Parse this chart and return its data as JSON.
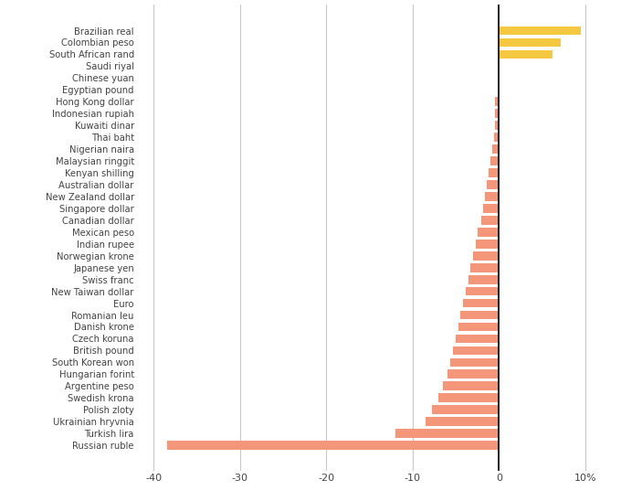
{
  "currencies": [
    "Brazilian real",
    "Colombian peso",
    "South African rand",
    "Saudi riyal",
    "Chinese yuan",
    "Egyptian pound",
    "Hong Kong dollar",
    "Indonesian rupiah",
    "Kuwaiti dinar",
    "Thai baht",
    "Nigerian naira",
    "Malaysian ringgit",
    "Kenyan shilling",
    "Australian dollar",
    "New Zealand dollar",
    "Singapore dollar",
    "Canadian dollar",
    "Mexican peso",
    "Indian rupee",
    "Norwegian krone",
    "Japanese yen",
    "Swiss franc",
    "New Taiwan dollar",
    "Euro",
    "Romanian leu",
    "Danish krone",
    "Czech koruna",
    "British pound",
    "South Korean won",
    "Hungarian forint",
    "Argentine peso",
    "Swedish krona",
    "Polish zloty",
    "Ukrainian hryvnia",
    "Turkish lira",
    "Russian ruble"
  ],
  "values": [
    9.5,
    7.2,
    6.2,
    0.0,
    0.0,
    0.0,
    -0.4,
    -0.5,
    -0.5,
    -0.6,
    -0.8,
    -1.0,
    -1.2,
    -1.4,
    -1.6,
    -1.8,
    -2.0,
    -2.5,
    -2.7,
    -3.0,
    -3.3,
    -3.5,
    -3.8,
    -4.2,
    -4.5,
    -4.7,
    -5.0,
    -5.3,
    -5.6,
    -6.0,
    -6.5,
    -7.0,
    -7.8,
    -8.5,
    -12.0,
    -38.5
  ],
  "positive_color": "#F5C842",
  "negative_color": "#F4967A",
  "background_color": "#FFFFFF",
  "grid_color": "#C8C8C8",
  "xlim": [
    -42,
    12
  ],
  "xticks": [
    -40,
    -30,
    -20,
    -10,
    0,
    10
  ],
  "xtick_labels": [
    "-40",
    "-30",
    "-20",
    "-10",
    "0",
    "10%"
  ]
}
